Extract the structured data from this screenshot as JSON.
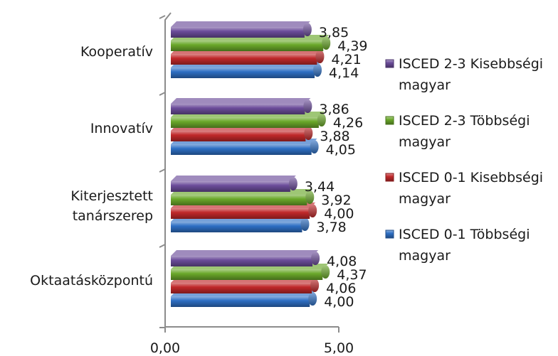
{
  "chart_data": {
    "type": "bar",
    "orientation": "horizontal",
    "style": "3d-cylinder",
    "categories": [
      "Oktaatásközpontú",
      "Kiterjesztett tanárszerep",
      "Innovatív",
      "Kooperatív"
    ],
    "category_lines": [
      [
        "Oktaatásközpontú"
      ],
      [
        "Kiterjesztett",
        "tanárszerep"
      ],
      [
        "Innovatív"
      ],
      [
        "Kooperatív"
      ]
    ],
    "series": [
      {
        "name": "ISCED 0-1 Többségi magyar",
        "legend_lines": [
          "ISCED 0-1 Többségi",
          "magyar"
        ],
        "color": "#2e6fc4",
        "values": [
          4.0,
          3.78,
          4.05,
          4.14
        ],
        "labels": [
          "4,00",
          "3,78",
          "4,05",
          "4,14"
        ]
      },
      {
        "name": "ISCED 0-1 Kisebbségi magyar",
        "legend_lines": [
          "ISCED 0-1 Kisebbségi",
          "magyar"
        ],
        "color": "#c0282a",
        "values": [
          4.06,
          4.0,
          3.88,
          4.21
        ],
        "labels": [
          "4,06",
          "4,00",
          "3,88",
          "4,21"
        ]
      },
      {
        "name": "ISCED 2-3 Többségi magyar",
        "legend_lines": [
          "ISCED 2-3 Többségi",
          "magyar"
        ],
        "color": "#6aa82a",
        "values": [
          4.37,
          3.92,
          4.26,
          4.39
        ],
        "labels": [
          "4,37",
          "3,92",
          "4,26",
          "4,39"
        ]
      },
      {
        "name": "ISCED 2-3 Kisebbségi magyar",
        "legend_lines": [
          "ISCED 2-3 Kisebbségi",
          "magyar"
        ],
        "color": "#6b4c9a",
        "values": [
          4.08,
          3.44,
          3.86,
          3.85
        ],
        "labels": [
          "4,08",
          "3,44",
          "3,86",
          "3,85"
        ]
      }
    ],
    "xlim": [
      0,
      5
    ],
    "x_ticks": [
      0,
      5
    ],
    "x_tick_labels": [
      "0,00",
      "5,00"
    ],
    "legend_position": "right",
    "legend_order": [
      3,
      2,
      1,
      0
    ],
    "grid": false,
    "title": "",
    "xlabel": "",
    "ylabel": ""
  }
}
